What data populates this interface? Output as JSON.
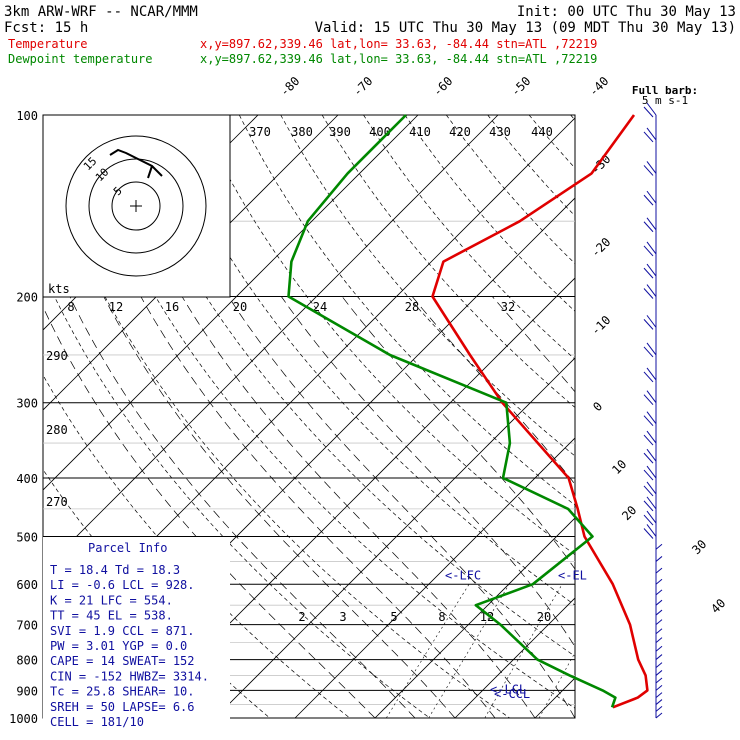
{
  "header": {
    "title": "3km ARW-WRF -- NCAR/MMM",
    "init": "Init: 00 UTC Thu 30 May 13",
    "fcst": "Fcst:   15 h",
    "valid": "Valid: 15 UTC Thu 30 May 13 (09 MDT Thu 30 May 13)",
    "temp_label": "Temperature",
    "dew_label": "Dewpoint temperature",
    "loc_text": "x,y=897.62,339.46   lat,lon= 33.63, -84.44   stn=ATL ,72219"
  },
  "colors": {
    "temperature": "#e00000",
    "dewpoint": "#008800",
    "wind": "#1010a0",
    "text": "#000000"
  },
  "wind": {
    "title": "Full barb:",
    "units": "5 m s-1"
  },
  "hodograph": {
    "label": "kts",
    "rings": [
      "5",
      "10",
      "15"
    ]
  },
  "parcel": {
    "title": "Parcel Info",
    "rows": [
      "T  =   18.4  Td =  18.3",
      "LI =   -0.6  LCL =  928.",
      "K  =     21  LFC =  554.",
      "TT =     45  EL  =  538.",
      "SVI =   1.9  CCL =  871.",
      "PW =   3.01  YGP =   0.0",
      "CAPE =   14  SWEAT=   152",
      "CIN =  -152  HWBZ= 3314.",
      "Tc =   25.8  SHEAR=   10.",
      "SREH =   50  LAPSE=   6.6",
      "CELL = 181/10"
    ]
  },
  "chart_data": {
    "type": "line",
    "subtype": "skew-T log-P sounding",
    "y_axis": {
      "label": "",
      "scale": "log",
      "ticks": [
        100,
        200,
        300,
        400,
        500,
        600,
        700,
        800,
        900,
        1000
      ]
    },
    "isotherm_labels": [
      "-80",
      "-70",
      "-60",
      "-50",
      "-40",
      "-30",
      "-20",
      "-10",
      "0",
      "10",
      "20",
      "30",
      "40"
    ],
    "theta_labels": [
      "370",
      "380",
      "390",
      "400",
      "410",
      "420",
      "430",
      "440"
    ],
    "theta_labels_lower": [
      "290",
      "280",
      "270"
    ],
    "mixing_ratio_labels_upper": [
      "8",
      "12",
      "16",
      "20",
      "24",
      "28",
      "32"
    ],
    "mixing_ratio_labels_lower": [
      "2",
      "3",
      "5",
      "8",
      "12",
      "20"
    ],
    "level_labels": {
      "lfc": "<-LFC",
      "el": "<-EL",
      "ccl": "<-CCL",
      "lcl": "<-LCL"
    },
    "level_pressures": {
      "lfc": 554,
      "el": 538,
      "ccl": 871,
      "lcl": 928
    },
    "series": [
      {
        "name": "Temperature",
        "points": [
          [
            960,
            18.4
          ],
          [
            925,
            20.3
          ],
          [
            900,
            20.6
          ],
          [
            850,
            18.5
          ],
          [
            800,
            15.6
          ],
          [
            700,
            10.2
          ],
          [
            600,
            3.0
          ],
          [
            500,
            -6.5
          ],
          [
            450,
            -10.8
          ],
          [
            400,
            -15.8
          ],
          [
            300,
            -33.5
          ],
          [
            250,
            -43.5
          ],
          [
            200,
            -55.5
          ],
          [
            175,
            -58.5
          ],
          [
            150,
            -54.0
          ],
          [
            125,
            -51.0
          ],
          [
            100,
            -53.0
          ]
        ]
      },
      {
        "name": "Dewpoint temperature",
        "points": [
          [
            960,
            18.3
          ],
          [
            925,
            17.5
          ],
          [
            900,
            15.0
          ],
          [
            850,
            9.0
          ],
          [
            800,
            3.0
          ],
          [
            700,
            -6.0
          ],
          [
            650,
            -11.5
          ],
          [
            600,
            -7.0
          ],
          [
            500,
            -5.5
          ],
          [
            450,
            -12.0
          ],
          [
            400,
            -24.0
          ],
          [
            350,
            -27.5
          ],
          [
            300,
            -33.0
          ],
          [
            250,
            -53.5
          ],
          [
            200,
            -73.5
          ],
          [
            175,
            -77.5
          ],
          [
            150,
            -80.5
          ],
          [
            125,
            -81.5
          ],
          [
            100,
            -81.5
          ]
        ]
      }
    ],
    "wind_levels_hpa": [
      1000,
      975,
      950,
      925,
      900,
      875,
      850,
      825,
      800,
      775,
      750,
      725,
      700,
      675,
      650,
      625,
      600,
      575,
      550,
      525,
      500,
      475,
      450,
      425,
      400,
      375,
      350,
      325,
      300,
      275,
      250,
      225,
      200,
      185,
      170,
      155,
      140,
      125,
      110,
      100
    ],
    "grid": true
  }
}
